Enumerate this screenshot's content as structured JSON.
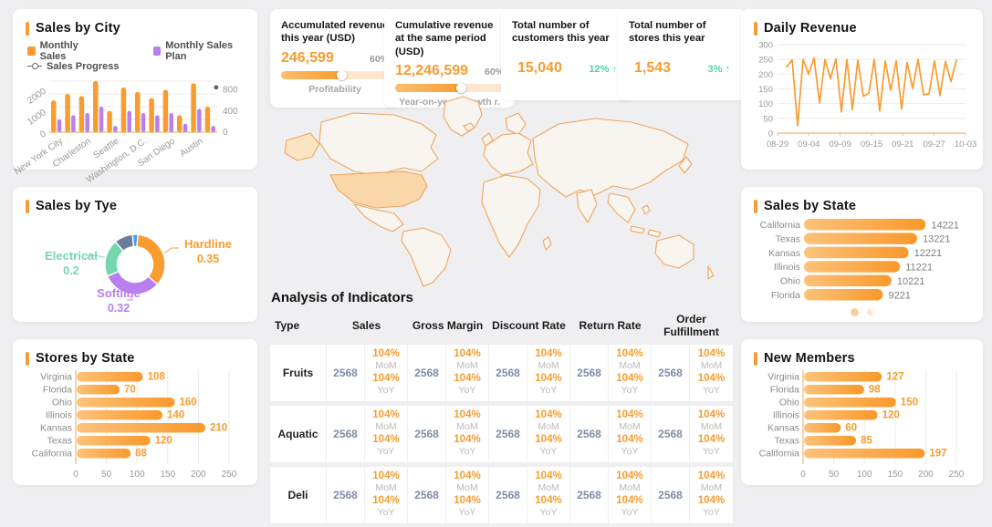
{
  "theme": {
    "orange": "#F89C2F",
    "purple": "#B97FEF",
    "green": "#74D7AD",
    "green_delta": "#52D3A2",
    "slate": "#6E7C9C",
    "blue": "#4C9BF5",
    "bg": "#EFEFF1",
    "axis_text": "#999999",
    "label_gray": "#8A8A8A",
    "value_blue": "#7D8DA8",
    "pct_gray": "#B9B9B9",
    "grid_line": "#F3EAE2",
    "bar_grad_from": "#FDC27A",
    "bar_grad_to": "#F8992B",
    "axis_line_orange": "#F4BE85",
    "scatter_dot": "#606060"
  },
  "panels": {
    "sales_by_city": {
      "title": "Sales by City"
    },
    "daily_revenue": {
      "title": "Daily Revenue"
    },
    "sales_by_tye": {
      "title": "Sales by Tye"
    },
    "sales_by_state": {
      "title": "Sales by State"
    },
    "stores_by_state": {
      "title": "Stores by State"
    },
    "new_members": {
      "title": "New Members"
    },
    "analysis": {
      "title": "Analysis of Indicators"
    }
  },
  "kpis": [
    {
      "title": "Accumulated revenue this year (USD)",
      "value": "246,599",
      "percent": "60%",
      "progress": 58,
      "caption": "Profitability"
    },
    {
      "title": "Cumulative revenue at the same period (USD)",
      "value": "12,246,599",
      "percent": "60%",
      "progress": 62,
      "caption": "Year-on-year growth r."
    },
    {
      "title": "Total number of customers this year",
      "value": "15,040",
      "delta": "12% ↑"
    },
    {
      "title": "Total number of stores this year",
      "value": "1,543",
      "delta": "3% ↑"
    }
  ],
  "table": {
    "columns": [
      "Type",
      "Sales",
      "Gross Margin",
      "Discount Rate",
      "Return Rate",
      "Order Fulfillment"
    ],
    "sub_labels": {
      "mom": "MoM",
      "yoy": "YoY"
    },
    "rows": [
      {
        "type": "Fruits",
        "metrics": [
          {
            "value": "2568",
            "mom": "104%",
            "yoy": "104%"
          },
          {
            "value": "2568",
            "mom": "104%",
            "yoy": "104%"
          },
          {
            "value": "2568",
            "mom": "104%",
            "yoy": "104%"
          },
          {
            "value": "2568",
            "mom": "104%",
            "yoy": "104%"
          },
          {
            "value": "2568",
            "mom": "104%",
            "yoy": "104%"
          }
        ]
      },
      {
        "type": "Aquatic",
        "metrics": [
          {
            "value": "2568",
            "mom": "104%",
            "yoy": "104%"
          },
          {
            "value": "2568",
            "mom": "104%",
            "yoy": "104%"
          },
          {
            "value": "2568",
            "mom": "104%",
            "yoy": "104%"
          },
          {
            "value": "2568",
            "mom": "104%",
            "yoy": "104%"
          },
          {
            "value": "2568",
            "mom": "104%",
            "yoy": "104%"
          }
        ]
      },
      {
        "type": "Deli",
        "metrics": [
          {
            "value": "2568",
            "mom": "104%",
            "yoy": "104%"
          },
          {
            "value": "2568",
            "mom": "104%",
            "yoy": "104%"
          },
          {
            "value": "2568",
            "mom": "104%",
            "yoy": "104%"
          },
          {
            "value": "2568",
            "mom": "104%",
            "yoy": "104%"
          },
          {
            "value": "2568",
            "mom": "104%",
            "yoy": "104%"
          }
        ]
      }
    ]
  },
  "chart_data": [
    {
      "id": "sales_by_city",
      "type": "bar",
      "title": "Sales by City",
      "categories": [
        "New York City",
        "Charleston",
        "Seattle",
        "Washington, D.C.",
        "San Diego",
        "Austin"
      ],
      "series": [
        {
          "name": "Monthly Sales",
          "color": "#F89C2F",
          "values": [
            1500,
            1800,
            1700,
            2400,
            1000,
            2100,
            1900,
            1600,
            2000,
            800,
            2300,
            1200
          ]
        },
        {
          "name": "Monthly Sales Plan",
          "color": "#B97FEF",
          "values": [
            600,
            800,
            900,
            1200,
            300,
            1000,
            900,
            800,
            900,
            400,
            1100,
            300
          ]
        },
        {
          "name": "Sales Progress",
          "type": "scatter",
          "color": "#606060",
          "axis": "right",
          "points": [
            {
              "x": 11.6,
              "y": 760
            }
          ]
        }
      ],
      "left_axis": {
        "ticks": [
          0,
          1000,
          2000
        ],
        "max": 2400
      },
      "right_axis": {
        "ticks": [
          0,
          400,
          800
        ],
        "max": 800
      },
      "legend_position": "top"
    },
    {
      "id": "daily_revenue",
      "type": "line",
      "title": "Daily Revenue",
      "color": "#F89C2F",
      "x_ticks": [
        "08-29",
        "09-04",
        "09-09",
        "09-15",
        "09-21",
        "09-27",
        "10-03"
      ],
      "y_ticks": [
        0,
        50,
        100,
        150,
        200,
        250,
        300
      ],
      "ylim": [
        0,
        300
      ],
      "grid": true,
      "values": [
        225,
        248,
        25,
        250,
        200,
        255,
        102,
        250,
        185,
        252,
        72,
        250,
        80,
        248,
        125,
        135,
        250,
        75,
        245,
        145,
        245,
        82,
        240,
        152,
        250,
        130,
        133,
        245,
        127,
        243,
        175,
        248
      ]
    },
    {
      "id": "sales_by_tye",
      "type": "pie",
      "title": "Sales by Tye",
      "donut": true,
      "start_angle": -95,
      "slices": [
        {
          "label": "",
          "value": 0.03,
          "color": "#4C9BF5"
        },
        {
          "label": "Hardline",
          "value": 0.35,
          "color": "#F89C2F"
        },
        {
          "label": "Softline",
          "value": 0.32,
          "color": "#B97FEF"
        },
        {
          "label": "Electrical",
          "value": 0.2,
          "color": "#74D7AD"
        },
        {
          "label": "",
          "value": 0.1,
          "color": "#6E7C9C"
        }
      ]
    },
    {
      "id": "sales_by_state",
      "type": "bar",
      "orientation": "horizontal",
      "title": "Sales by State",
      "categories": [
        "California",
        "Texas",
        "Kansas",
        "Illinois",
        "Ohio",
        "Florida"
      ],
      "values": [
        14221,
        13221,
        12221,
        11221,
        10221,
        9221
      ],
      "value_label_style": "gray",
      "pagination_dots": 2
    },
    {
      "id": "stores_by_state",
      "type": "bar",
      "orientation": "horizontal",
      "title": "Stores by State",
      "categories": [
        "Virginia",
        "Florida",
        "Ohio",
        "Illinois",
        "Kansas",
        "Texas",
        "California"
      ],
      "values": [
        108,
        70,
        160,
        140,
        210,
        120,
        88
      ],
      "x_ticks": [
        0,
        50,
        100,
        150,
        200,
        250
      ],
      "xlim": [
        0,
        250
      ],
      "grid": true,
      "value_label_style": "orange"
    },
    {
      "id": "new_members",
      "type": "bar",
      "orientation": "horizontal",
      "title": "New Members",
      "categories": [
        "Virginia",
        "Florida",
        "Ohio",
        "Illinois",
        "Kansas",
        "Texas",
        "California"
      ],
      "values": [
        127,
        98,
        150,
        120,
        60,
        85,
        197
      ],
      "x_ticks": [
        0,
        50,
        100,
        150,
        200,
        250
      ],
      "xlim": [
        0,
        250
      ],
      "grid": true,
      "value_label_style": "orange"
    }
  ]
}
